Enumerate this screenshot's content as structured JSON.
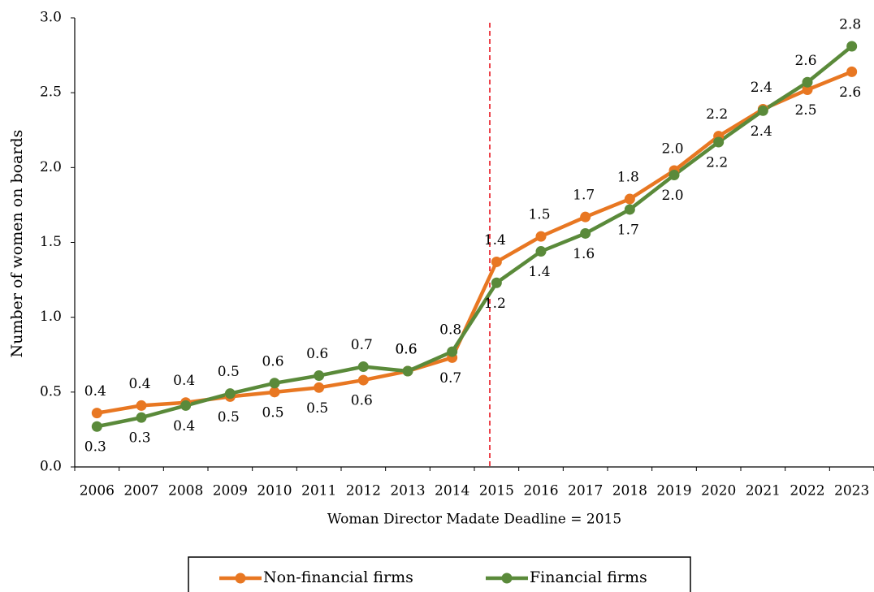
{
  "chart_data": {
    "type": "line",
    "x_label": "Woman Director Madate Deadline = 2015",
    "y_label": "Number of women on boards",
    "categories": [
      "2006",
      "2007",
      "2008",
      "2009",
      "2010",
      "2011",
      "2012",
      "2013",
      "2014",
      "2015",
      "2016",
      "2017",
      "2018",
      "2019",
      "2020",
      "2021",
      "2022",
      "2023"
    ],
    "series": [
      {
        "name": "Non-financial firms",
        "color": "#e87722",
        "values": [
          0.36,
          0.41,
          0.43,
          0.47,
          0.5,
          0.53,
          0.58,
          0.64,
          0.73,
          1.37,
          1.54,
          1.67,
          1.79,
          1.98,
          2.21,
          2.39,
          2.52,
          2.64
        ],
        "value_labels": [
          "0.4",
          "0.4",
          "0.4",
          "0.5",
          "0.5",
          "0.5",
          "0.6",
          "0.6",
          "0.7",
          "1.4",
          "1.5",
          "1.7",
          "1.8",
          "2.0",
          "2.2",
          "2.4",
          "2.5",
          "2.6"
        ]
      },
      {
        "name": "Financial firms",
        "color": "#5a8a3a",
        "values": [
          0.27,
          0.33,
          0.41,
          0.49,
          0.56,
          0.61,
          0.67,
          0.64,
          0.77,
          1.23,
          1.44,
          1.56,
          1.72,
          1.95,
          2.17,
          2.38,
          2.57,
          2.81
        ],
        "value_labels": [
          "0.3",
          "0.3",
          "0.4",
          "0.5",
          "0.6",
          "0.6",
          "0.7",
          "0.6",
          "0.8",
          "1.2",
          "1.4",
          "1.6",
          "1.7",
          "2.0",
          "2.2",
          "2.4",
          "2.6",
          "2.8"
        ]
      }
    ],
    "ylim": [
      0,
      3
    ],
    "yticks": [
      {
        "value": 0,
        "label": "0.0"
      },
      0.5,
      {
        "value": 1,
        "label": "1.0"
      },
      1.5,
      {
        "value": 2,
        "label": "2.0"
      },
      2.5,
      {
        "value": 3,
        "label": "3.0"
      }
    ],
    "legend": "bottom"
  }
}
